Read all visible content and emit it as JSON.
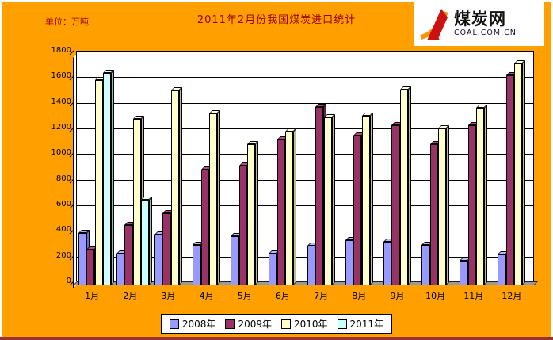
{
  "header": {
    "unit_label": "单位：万吨",
    "title": "2011年2月份我国煤炭进口统计"
  },
  "logo": {
    "name": "煤炭网",
    "domain": "COAL.COM.CN"
  },
  "colors": {
    "background_orange": "#FFA000",
    "title_text": "#990000",
    "bottom_strip": "#993333",
    "plot_wall": "#FFFFFF",
    "floor_gray": "#9A9A9A",
    "logo_red": "#CC1111",
    "logo_orange": "#F39800"
  },
  "chart_data": {
    "type": "bar",
    "style": "3d-clustered-column",
    "title": "2011年2月份我国煤炭进口统计",
    "unit": "万吨",
    "xlabel": "",
    "ylabel": "万吨",
    "ylim": [
      0,
      1800
    ],
    "ytick_interval": 200,
    "yticks": [
      0,
      200,
      400,
      600,
      800,
      1000,
      1200,
      1400,
      1600,
      1800
    ],
    "grid": true,
    "legend_position": "bottom",
    "categories": [
      "1月",
      "2月",
      "3月",
      "4月",
      "5月",
      "6月",
      "7月",
      "8月",
      "9月",
      "10月",
      "11月",
      "12月"
    ],
    "series": [
      {
        "name": "2008年",
        "color": "#9999FF",
        "side_color": "#6B6BCF",
        "top_color": "#B8B8FF",
        "values": [
          410,
          250,
          395,
          315,
          385,
          250,
          310,
          350,
          340,
          315,
          190,
          240
        ]
      },
      {
        "name": "2009年",
        "color": "#993366",
        "side_color": "#662244",
        "top_color": "#B04C80",
        "values": [
          280,
          470,
          560,
          900,
          935,
          1140,
          1390,
          1170,
          1250,
          1100,
          1250,
          1640
        ]
      },
      {
        "name": "2010年",
        "color": "#FFFFCC",
        "side_color": "#BDBD8F",
        "top_color": "#FFFFE6",
        "values": [
          1600,
          1300,
          1520,
          1345,
          1100,
          1200,
          1310,
          1325,
          1525,
          1225,
          1385,
          1730
        ]
      },
      {
        "name": "2011年",
        "color": "#CCFFFF",
        "side_color": "#8FBEBE",
        "top_color": "#E8FFFF",
        "values": [
          1660,
          670,
          null,
          null,
          null,
          null,
          null,
          null,
          null,
          null,
          null,
          null
        ]
      }
    ]
  }
}
